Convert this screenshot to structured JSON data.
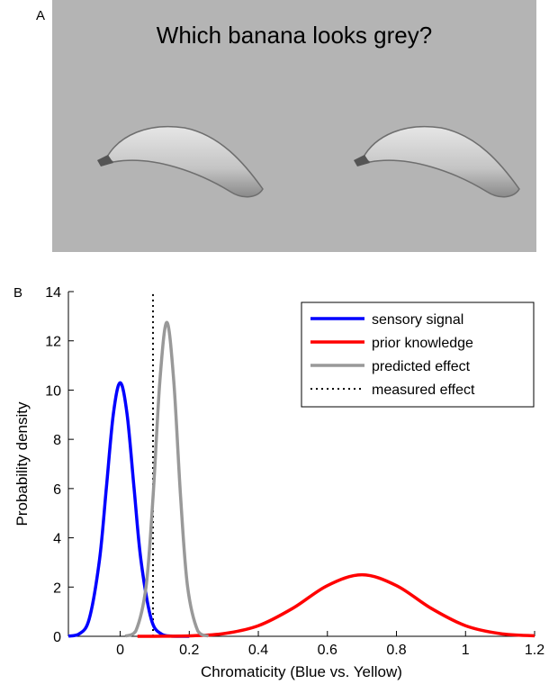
{
  "panel_a": {
    "label": "A",
    "title": "Which banana looks grey?"
  },
  "chart_data": {
    "type": "line",
    "panel_label": "B",
    "xlabel": "Chromaticity (Blue vs. Yellow)",
    "ylabel": "Probability density",
    "xlim": [
      -0.15,
      1.2
    ],
    "ylim": [
      0,
      14
    ],
    "xticks": [
      0,
      0.2,
      0.4,
      0.6,
      0.8,
      1,
      1.2
    ],
    "yticks": [
      0,
      2,
      4,
      6,
      8,
      10,
      12,
      14
    ],
    "legend": "upper right",
    "series": [
      {
        "name": "sensory signal",
        "color": "#0000ff",
        "style": "solid",
        "x": [
          -0.15,
          -0.12,
          -0.09,
          -0.06,
          -0.04,
          -0.02,
          0,
          0.02,
          0.04,
          0.06,
          0.09,
          0.12,
          0.15,
          0.2
        ],
        "values": [
          0.006,
          0.085,
          0.69,
          3.1,
          6.04,
          9.01,
          10.3,
          9.01,
          6.04,
          3.1,
          0.69,
          0.085,
          0.006,
          0
        ]
      },
      {
        "name": "prior knowledge",
        "color": "#ff0000",
        "style": "solid",
        "x": [
          0.05,
          0.1,
          0.2,
          0.3,
          0.4,
          0.5,
          0.6,
          0.7,
          0.8,
          0.9,
          1.0,
          1.1,
          1.2
        ],
        "values": [
          0.001,
          0.002,
          0.019,
          0.11,
          0.43,
          1.14,
          2.06,
          2.5,
          2.06,
          1.14,
          0.43,
          0.11,
          0.019
        ]
      },
      {
        "name": "predicted effect",
        "color": "#999999",
        "style": "solid",
        "x": [
          0.015,
          0.045,
          0.075,
          0.095,
          0.115,
          0.135,
          0.155,
          0.175,
          0.195,
          0.225,
          0.255
        ],
        "values": [
          0.008,
          0.21,
          2.03,
          5.64,
          10.39,
          12.75,
          10.39,
          5.64,
          2.03,
          0.21,
          0.008
        ]
      },
      {
        "name": "measured effect",
        "color": "#000000",
        "style": "dotted",
        "x": [
          0.095,
          0.095
        ],
        "values": [
          0,
          14
        ]
      }
    ]
  }
}
